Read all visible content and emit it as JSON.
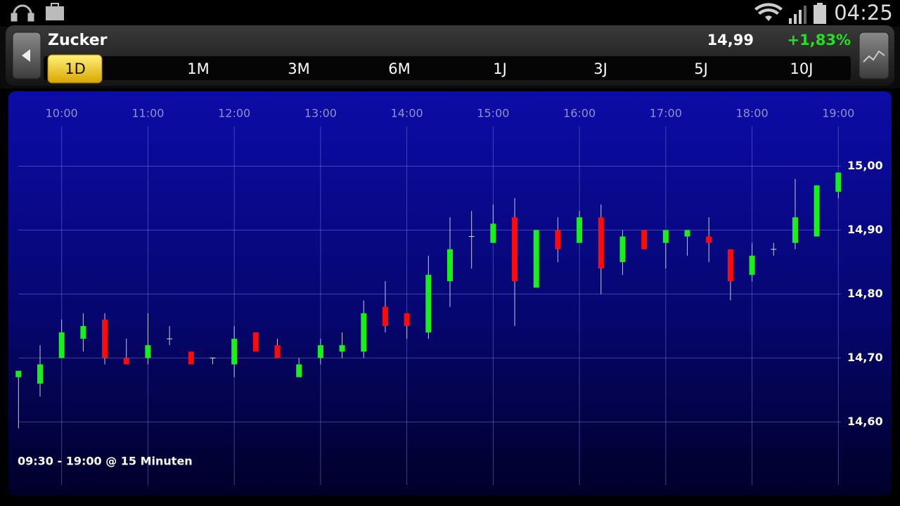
{
  "status_bar": {
    "time": "04:25"
  },
  "header": {
    "name": "Zucker",
    "price": "14,99",
    "change": "+1,83%"
  },
  "tabs": [
    "1D",
    "1M",
    "3M",
    "6M",
    "1J",
    "3J",
    "5J",
    "10J"
  ],
  "active_tab": 0,
  "chart_data": {
    "type": "candlestick",
    "footnote": "09:30 - 19:00 @ 15 Minuten",
    "x": [
      570,
      585,
      600,
      615,
      630,
      645,
      660,
      675,
      690,
      705,
      720,
      735,
      750,
      765,
      780,
      795,
      810,
      825,
      840,
      855,
      870,
      885,
      900,
      915,
      930,
      945,
      960,
      975,
      990,
      1005,
      1020,
      1035,
      1050,
      1065,
      1080,
      1095,
      1110,
      1125,
      1140
    ],
    "open": [
      14.67,
      14.66,
      14.7,
      14.73,
      14.76,
      14.7,
      14.7,
      14.73,
      14.71,
      14.7,
      14.69,
      14.74,
      14.72,
      14.67,
      14.7,
      14.71,
      14.71,
      14.78,
      14.77,
      14.74,
      14.82,
      14.89,
      14.88,
      14.92,
      14.81,
      14.9,
      14.88,
      14.92,
      14.85,
      14.9,
      14.88,
      14.89,
      14.89,
      14.87,
      14.83,
      14.87,
      14.88,
      14.89,
      14.96
    ],
    "high": [
      14.68,
      14.72,
      14.76,
      14.77,
      14.77,
      14.73,
      14.77,
      14.75,
      14.71,
      14.7,
      14.75,
      14.74,
      14.73,
      14.7,
      14.73,
      14.74,
      14.79,
      14.82,
      14.77,
      14.86,
      14.92,
      14.93,
      14.94,
      14.95,
      14.9,
      14.92,
      14.93,
      14.94,
      14.9,
      14.9,
      14.9,
      14.9,
      14.92,
      14.87,
      14.88,
      14.88,
      14.98,
      14.97,
      14.99
    ],
    "low": [
      14.59,
      14.64,
      14.7,
      14.71,
      14.69,
      14.69,
      14.69,
      14.72,
      14.69,
      14.69,
      14.67,
      14.71,
      14.7,
      14.67,
      14.69,
      14.7,
      14.7,
      14.74,
      14.73,
      14.73,
      14.78,
      14.84,
      14.88,
      14.75,
      14.81,
      14.85,
      14.88,
      14.8,
      14.83,
      14.87,
      14.84,
      14.86,
      14.85,
      14.79,
      14.82,
      14.86,
      14.87,
      14.89,
      14.95
    ],
    "close": [
      14.68,
      14.69,
      14.74,
      14.75,
      14.7,
      14.69,
      14.72,
      14.73,
      14.69,
      14.7,
      14.73,
      14.71,
      14.7,
      14.69,
      14.72,
      14.72,
      14.77,
      14.75,
      14.75,
      14.83,
      14.87,
      14.89,
      14.91,
      14.82,
      14.9,
      14.87,
      14.92,
      14.84,
      14.89,
      14.87,
      14.9,
      14.9,
      14.88,
      14.82,
      14.86,
      14.87,
      14.92,
      14.97,
      14.99
    ],
    "up_color": "#19f019",
    "down_color": "#ff0a0a",
    "xlim": [
      563,
      1177
    ],
    "ylim": [
      14.485,
      15.117
    ],
    "xticks": [
      {
        "value": 600,
        "label": "10:00"
      },
      {
        "value": 660,
        "label": "11:00"
      },
      {
        "value": 720,
        "label": "12:00"
      },
      {
        "value": 780,
        "label": "13:00"
      },
      {
        "value": 840,
        "label": "14:00"
      },
      {
        "value": 900,
        "label": "15:00"
      },
      {
        "value": 960,
        "label": "16:00"
      },
      {
        "value": 1020,
        "label": "17:00"
      },
      {
        "value": 1080,
        "label": "18:00"
      },
      {
        "value": 1140,
        "label": "19:00"
      }
    ],
    "yticks": [
      {
        "value": 14.6,
        "label": "14,60"
      },
      {
        "value": 14.7,
        "label": "14,70"
      },
      {
        "value": 14.8,
        "label": "14,80"
      },
      {
        "value": 14.9,
        "label": "14,90"
      },
      {
        "value": 15.0,
        "label": "15,00"
      }
    ],
    "grid": true
  }
}
